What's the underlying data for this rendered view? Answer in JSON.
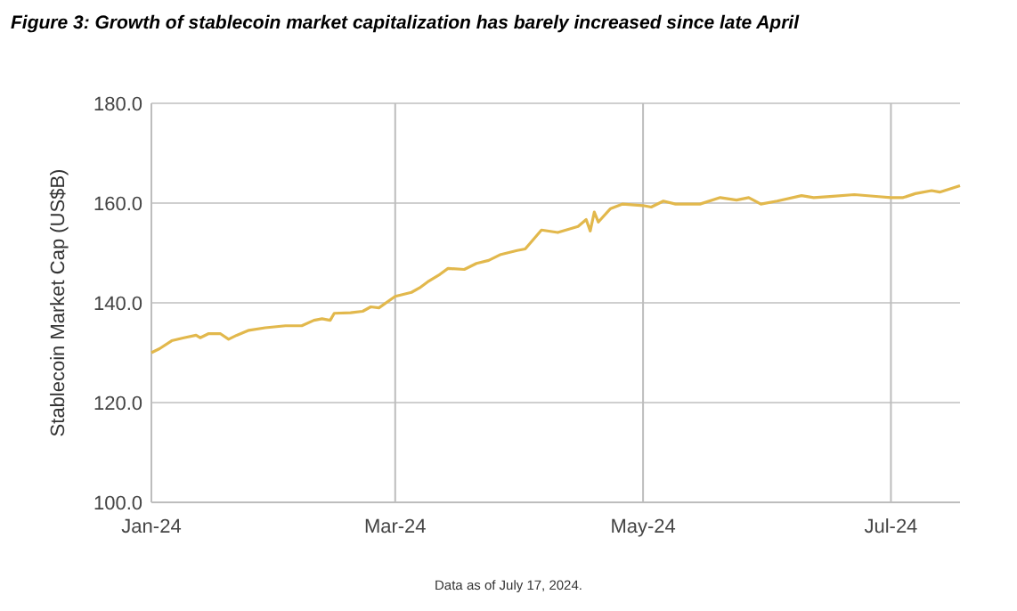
{
  "chart_data": {
    "type": "line",
    "title": "Figure 3: Growth of stablecoin market capitalization has barely increased since late April",
    "ylabel": "Stablecoin Market Cap (US$B)",
    "annotations": [
      "Data as of July 17, 2024."
    ],
    "x": [
      "2024-01-01",
      "2024-01-03",
      "2024-01-06",
      "2024-01-09",
      "2024-01-12",
      "2024-01-13",
      "2024-01-15",
      "2024-01-18",
      "2024-01-20",
      "2024-01-22",
      "2024-01-25",
      "2024-01-29",
      "2024-02-03",
      "2024-02-07",
      "2024-02-10",
      "2024-02-12",
      "2024-02-14",
      "2024-02-15",
      "2024-02-19",
      "2024-02-22",
      "2024-02-24",
      "2024-02-26",
      "2024-03-01",
      "2024-03-05",
      "2024-03-07",
      "2024-03-09",
      "2024-03-12",
      "2024-03-14",
      "2024-03-18",
      "2024-03-21",
      "2024-03-24",
      "2024-03-27",
      "2024-03-31",
      "2024-04-02",
      "2024-04-06",
      "2024-04-10",
      "2024-04-15",
      "2024-04-17",
      "2024-04-18",
      "2024-04-19",
      "2024-04-20",
      "2024-04-23",
      "2024-04-26",
      "2024-05-01",
      "2024-05-03",
      "2024-05-06",
      "2024-05-09",
      "2024-05-15",
      "2024-05-20",
      "2024-05-24",
      "2024-05-27",
      "2024-05-30",
      "2024-06-03",
      "2024-06-09",
      "2024-06-12",
      "2024-06-16",
      "2024-06-22",
      "2024-06-28",
      "2024-07-01",
      "2024-07-04",
      "2024-07-07",
      "2024-07-11",
      "2024-07-13",
      "2024-07-18"
    ],
    "series": [
      {
        "color": "#e2b84c",
        "values": [
          130.0,
          130.8,
          132.4,
          133.0,
          133.5,
          133.0,
          133.8,
          133.8,
          132.7,
          133.5,
          134.5,
          135.0,
          135.4,
          135.4,
          136.5,
          136.8,
          136.5,
          137.9,
          138.0,
          138.3,
          139.2,
          139.0,
          141.3,
          142.1,
          143.0,
          144.2,
          145.7,
          146.9,
          146.7,
          147.9,
          148.5,
          149.7,
          150.5,
          150.8,
          154.6,
          154.1,
          155.3,
          156.7,
          154.4,
          158.2,
          156.2,
          158.9,
          159.8,
          159.5,
          159.2,
          160.4,
          159.8,
          159.8,
          161.1,
          160.6,
          161.1,
          159.8,
          160.4,
          161.5,
          161.1,
          161.3,
          161.7,
          161.3,
          161.1,
          161.1,
          161.9,
          162.5,
          162.2,
          163.5
        ]
      }
    ],
    "xlim": [
      "2024-01-01",
      "2024-07-18"
    ],
    "xticks": [
      {
        "value": "2024-01-01",
        "label": "Jan-24"
      },
      {
        "value": "2024-03-01",
        "label": "Mar-24"
      },
      {
        "value": "2024-05-01",
        "label": "May-24"
      },
      {
        "value": "2024-07-01",
        "label": "Jul-24"
      }
    ],
    "ylim": [
      100,
      180
    ],
    "yticks": [
      {
        "value": 100,
        "label": "100.0"
      },
      {
        "value": 120,
        "label": "120.0"
      },
      {
        "value": 140,
        "label": "140.0"
      },
      {
        "value": 160,
        "label": "160.0"
      },
      {
        "value": 180,
        "label": "180.0"
      }
    ],
    "grid": true,
    "line_style": "solid",
    "marker": "none"
  }
}
